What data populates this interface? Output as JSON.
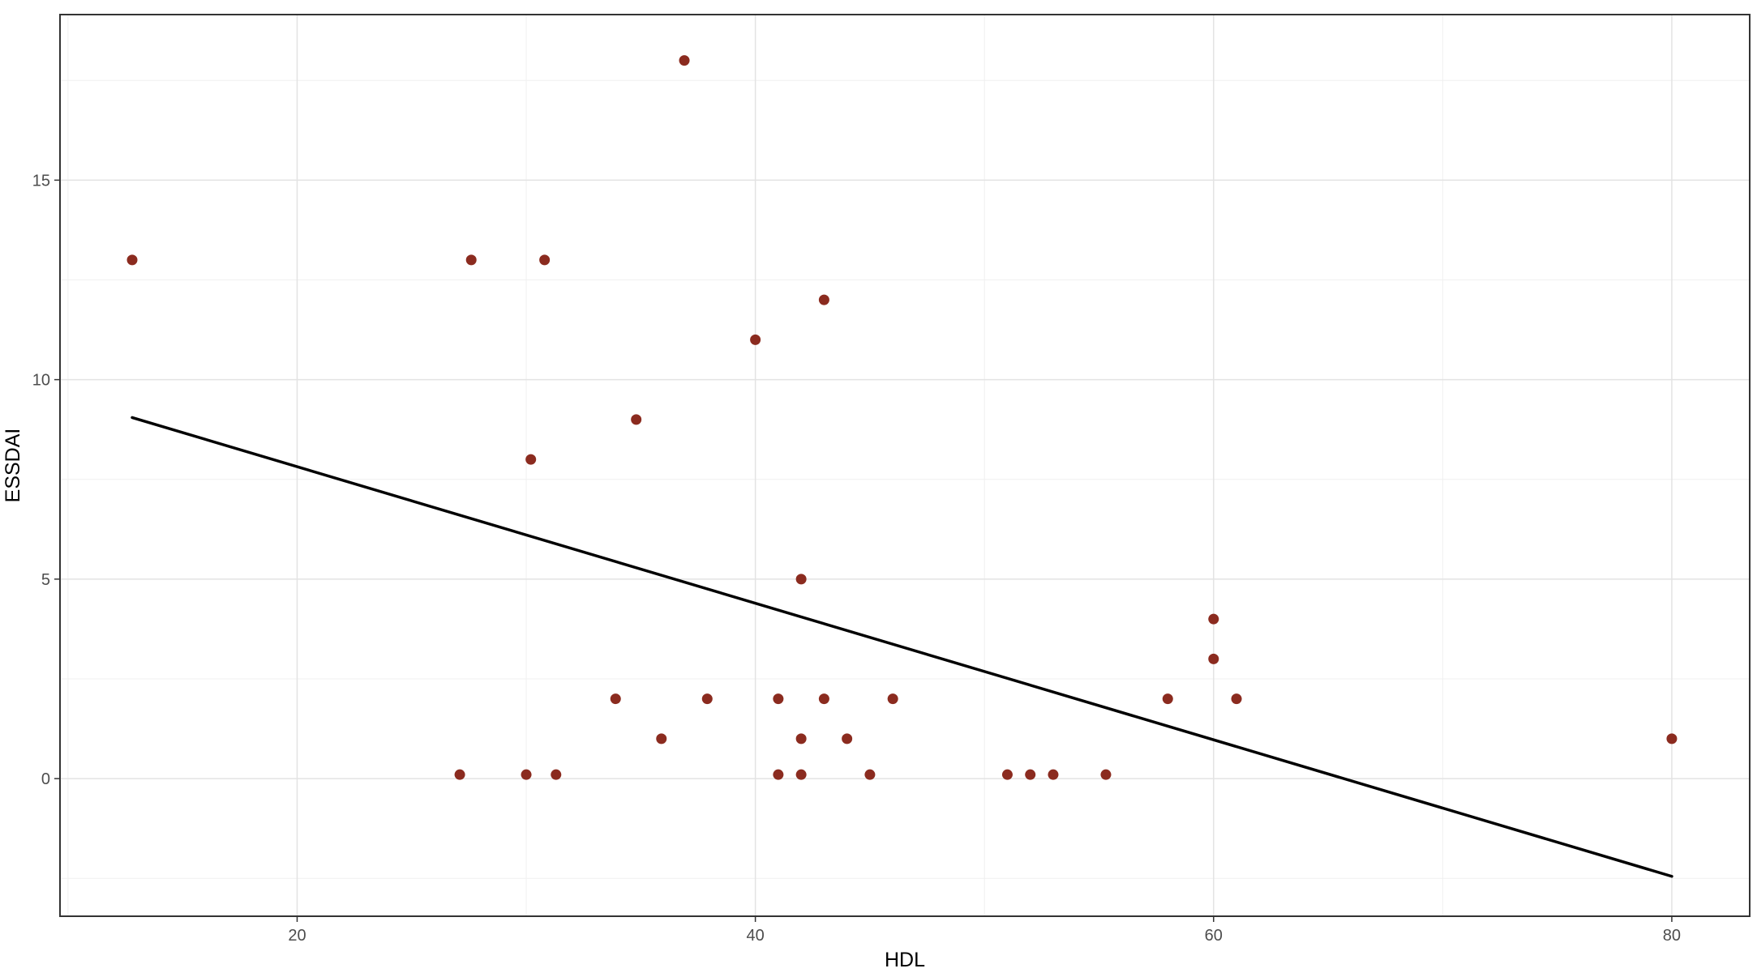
{
  "chart_data": {
    "type": "scatter",
    "title": "",
    "xlabel": "HDL",
    "ylabel": "ESSDAI",
    "xlim": [
      9.65,
      83.4
    ],
    "ylim": [
      -3.45,
      19.15
    ],
    "x_ticks": [
      20,
      40,
      60,
      80
    ],
    "y_ticks": [
      0,
      5,
      10,
      15
    ],
    "grid": true,
    "legend": "none",
    "point_color": "#8b2b1f",
    "line_color": "#000000",
    "points": [
      {
        "x": 12.8,
        "y": 13
      },
      {
        "x": 27.1,
        "y": 0.1
      },
      {
        "x": 27.6,
        "y": 13
      },
      {
        "x": 30.0,
        "y": 0.1
      },
      {
        "x": 30.2,
        "y": 8
      },
      {
        "x": 30.8,
        "y": 13
      },
      {
        "x": 31.3,
        "y": 0.1
      },
      {
        "x": 33.9,
        "y": 2
      },
      {
        "x": 34.8,
        "y": 9
      },
      {
        "x": 35.9,
        "y": 1
      },
      {
        "x": 36.9,
        "y": 18
      },
      {
        "x": 37.9,
        "y": 2
      },
      {
        "x": 40.0,
        "y": 11
      },
      {
        "x": 41.0,
        "y": 2
      },
      {
        "x": 41.0,
        "y": 0.1
      },
      {
        "x": 42.0,
        "y": 5
      },
      {
        "x": 42.0,
        "y": 1
      },
      {
        "x": 42.0,
        "y": 0.1
      },
      {
        "x": 43.0,
        "y": 12
      },
      {
        "x": 43.0,
        "y": 2
      },
      {
        "x": 44.0,
        "y": 1
      },
      {
        "x": 45.0,
        "y": 0.1
      },
      {
        "x": 46.0,
        "y": 2
      },
      {
        "x": 51.0,
        "y": 0.1
      },
      {
        "x": 52.0,
        "y": 0.1
      },
      {
        "x": 53.0,
        "y": 0.1
      },
      {
        "x": 55.3,
        "y": 0.1
      },
      {
        "x": 58.0,
        "y": 2
      },
      {
        "x": 60.0,
        "y": 4
      },
      {
        "x": 60.0,
        "y": 3
      },
      {
        "x": 61.0,
        "y": 2
      },
      {
        "x": 80.0,
        "y": 1
      }
    ],
    "trend_line": {
      "x": [
        12.8,
        80.0
      ],
      "y": [
        9.05,
        -2.45
      ]
    }
  }
}
